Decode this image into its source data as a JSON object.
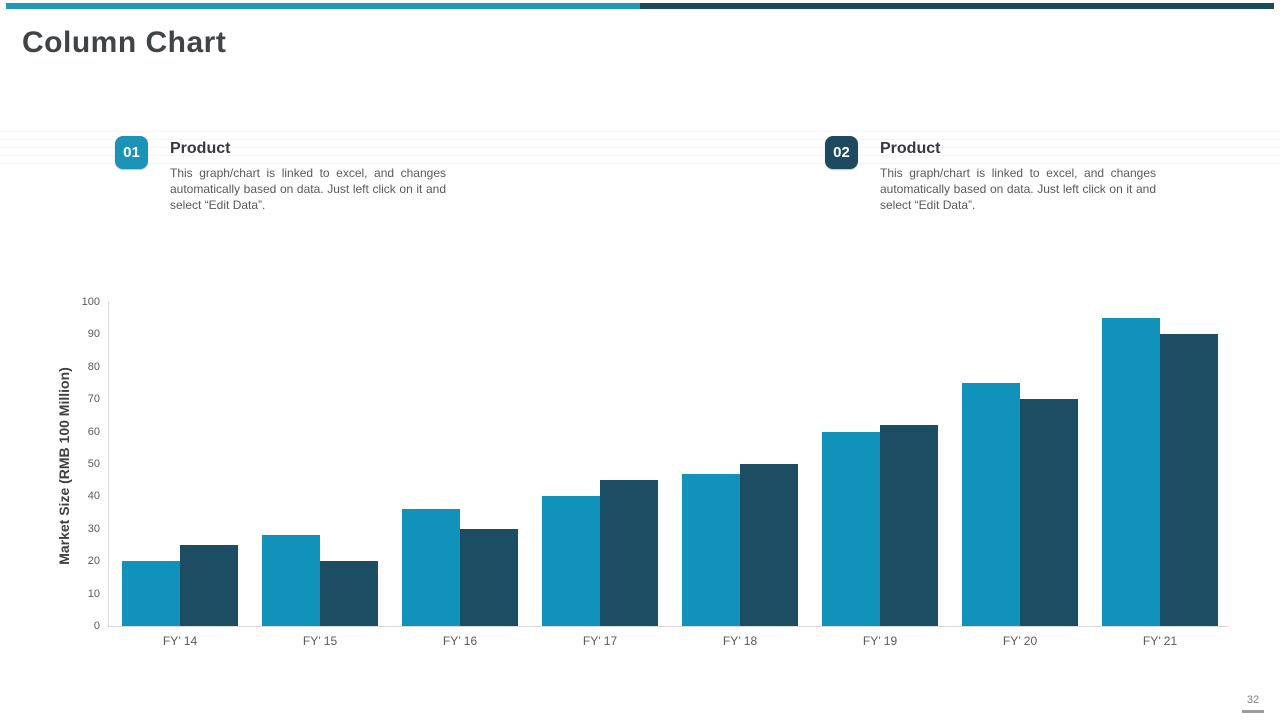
{
  "header": {
    "title": "Column Chart"
  },
  "callouts": [
    {
      "number": "01",
      "badge_color": "#1a93b7",
      "title": "Product",
      "body": "This graph/chart is linked to excel, and changes automatically based on data. Just left click on it and select “Edit Data”."
    },
    {
      "number": "02",
      "badge_color": "#1d4a5f",
      "title": "Product",
      "body": "This graph/chart is linked to excel, and changes automatically based on data. Just left click on it and select “Edit Data”."
    }
  ],
  "chart_data": {
    "type": "bar",
    "title": "",
    "categories": [
      "FY’ 14",
      "FY’ 15",
      "FY’ 16",
      "FY’ 17",
      "FY’ 18",
      "FY’ 19",
      "FY’ 20",
      "FY’ 21"
    ],
    "series": [
      {
        "key": "series-1",
        "color": "#1192ba",
        "values": [
          20,
          28,
          36,
          40,
          47,
          60,
          75,
          95
        ]
      },
      {
        "key": "series-2",
        "color": "#1d4d63",
        "values": [
          25,
          20,
          30,
          45,
          50,
          62,
          70,
          90
        ]
      }
    ],
    "xlabel": "",
    "ylabel": "Market Size (RMB 100 Million)",
    "ylim": [
      0,
      100
    ],
    "ytick_step": 10,
    "grid": false,
    "legend": "none"
  },
  "footer": {
    "page_number": "32"
  }
}
